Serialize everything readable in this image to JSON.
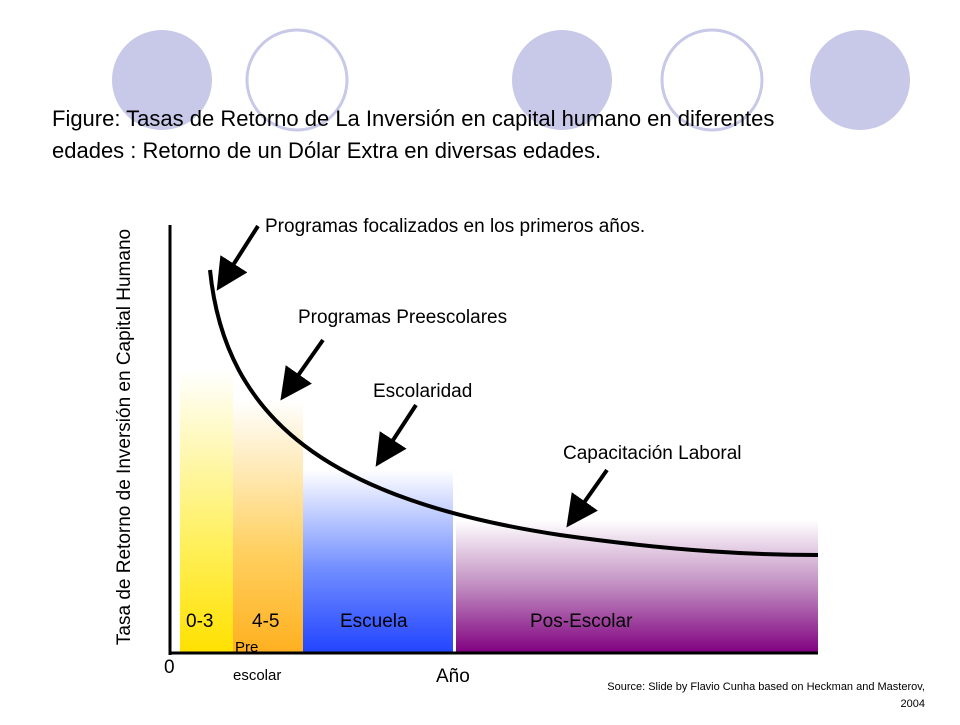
{
  "title": {
    "lines": [
      "Figure:  Tasas de Retorno de La Inversión en capital humano en diferentes",
      "edades : Retorno de un Dólar Extra en diversas edades."
    ]
  },
  "y_axis_label": "Tasa de Retorno de Inversión en Capital Humano",
  "x_axis_label": "Año",
  "origin_label": "0",
  "annotations": [
    "Programas focalizados en los primeros años.",
    "Programas Preescolares",
    "Escolaridad",
    "Capacitación Laboral"
  ],
  "stages": [
    {
      "label": "0-3"
    },
    {
      "label": "4-5",
      "sublabel": [
        "Pre",
        "escolar"
      ]
    },
    {
      "label": "Escuela"
    },
    {
      "label": "Pos-Escolar"
    }
  ],
  "source": [
    "Source: Slide by Flavio Cunha  based on Heckman  and Masterov,",
    "2004"
  ]
}
